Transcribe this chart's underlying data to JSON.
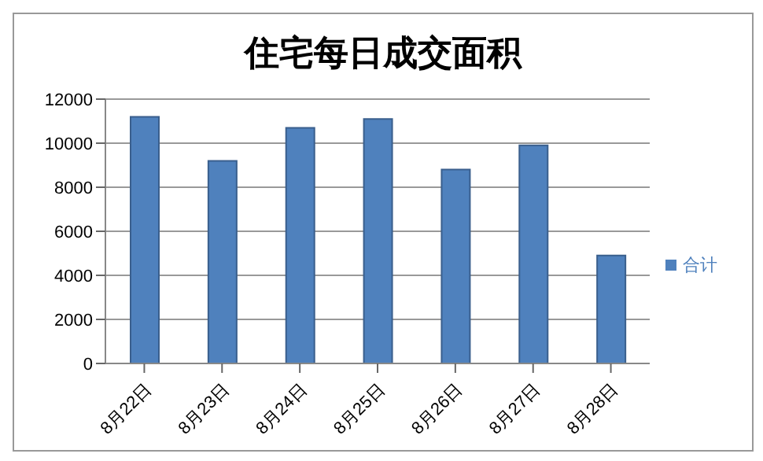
{
  "chart_data": {
    "type": "bar",
    "title": "住宅每日成交面积",
    "categories": [
      "8月22日",
      "8月23日",
      "8月24日",
      "8月25日",
      "8月26日",
      "8月27日",
      "8月28日"
    ],
    "series": [
      {
        "name": "合计",
        "color": "#4f81bd",
        "values": [
          11200,
          9200,
          10700,
          11100,
          8800,
          9900,
          4900
        ]
      }
    ],
    "ylim": [
      0,
      12000
    ],
    "yticks": [
      0,
      2000,
      4000,
      6000,
      8000,
      10000,
      12000
    ],
    "grid": "y",
    "legend": "right"
  }
}
